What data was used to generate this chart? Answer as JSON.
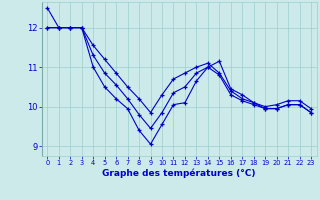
{
  "title": "Graphe des températures (°C)",
  "background_color": "#cceaea",
  "line_color": "#0000cc",
  "grid_color": "#9ecece",
  "bottom_bar_color": "#0000aa",
  "ylim": [
    8.75,
    12.65
  ],
  "xlim": [
    -0.5,
    23.5
  ],
  "yticks": [
    9,
    10,
    11,
    12
  ],
  "xticks": [
    0,
    1,
    2,
    3,
    4,
    5,
    6,
    7,
    8,
    9,
    10,
    11,
    12,
    13,
    14,
    15,
    16,
    17,
    18,
    19,
    20,
    21,
    22,
    23
  ],
  "line1_x": [
    0,
    1,
    2,
    3,
    4,
    5,
    6,
    7,
    8,
    9,
    10,
    11,
    12,
    13,
    14,
    15,
    16,
    17,
    18,
    19,
    20,
    21,
    22,
    23
  ],
  "line1_y": [
    12.5,
    12.0,
    12.0,
    12.0,
    11.0,
    10.5,
    10.2,
    9.95,
    9.4,
    9.05,
    9.55,
    10.05,
    10.1,
    10.65,
    11.0,
    11.15,
    10.45,
    10.3,
    10.1,
    10.0,
    10.05,
    10.15,
    10.15,
    9.95
  ],
  "line2_x": [
    0,
    1,
    2,
    3,
    4,
    5,
    6,
    7,
    8,
    9,
    10,
    11,
    12,
    13,
    14,
    15,
    16,
    17,
    18,
    19,
    20,
    21,
    22,
    23
  ],
  "line2_y": [
    12.0,
    12.0,
    12.0,
    12.0,
    11.55,
    11.2,
    10.85,
    10.5,
    10.2,
    9.85,
    10.3,
    10.7,
    10.85,
    11.0,
    11.1,
    10.85,
    10.4,
    10.2,
    10.1,
    9.95,
    9.95,
    10.05,
    10.05,
    9.85
  ],
  "line3_x": [
    0,
    1,
    2,
    3,
    4,
    5,
    6,
    7,
    8,
    9,
    10,
    11,
    12,
    13,
    14,
    15,
    16,
    17,
    18,
    19,
    20,
    21,
    22,
    23
  ],
  "line3_y": [
    12.0,
    12.0,
    12.0,
    12.0,
    11.3,
    10.85,
    10.55,
    10.2,
    9.8,
    9.45,
    9.85,
    10.35,
    10.5,
    10.85,
    11.0,
    10.8,
    10.3,
    10.15,
    10.05,
    9.95,
    9.95,
    10.05,
    10.05,
    9.85
  ]
}
